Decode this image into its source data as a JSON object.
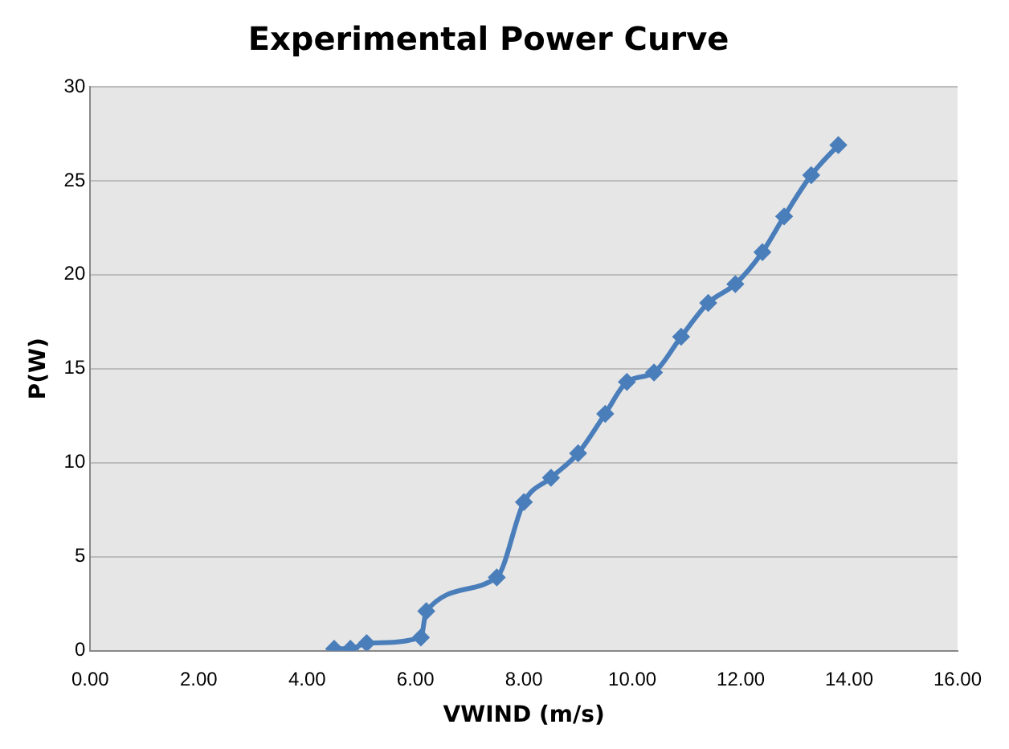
{
  "chart_data": {
    "type": "line",
    "title": "Experimental Power Curve",
    "xlabel": "VWIND (m/s)",
    "ylabel": "P(W)",
    "x": [
      4.5,
      4.8,
      5.1,
      6.1,
      6.2,
      7.5,
      8.0,
      8.5,
      9.0,
      9.5,
      9.9,
      10.4,
      10.9,
      11.4,
      11.9,
      12.4,
      12.8,
      13.3,
      13.8
    ],
    "series": [
      {
        "color": "#4a7ebb",
        "values": [
          0.1,
          0.1,
          0.4,
          0.7,
          2.1,
          3.9,
          7.9,
          9.2,
          10.5,
          12.6,
          14.3,
          14.8,
          16.7,
          18.5,
          19.5,
          21.2,
          23.1,
          25.3,
          26.9
        ]
      }
    ],
    "xlim": [
      0,
      16
    ],
    "xticks": [
      {
        "value": 0,
        "label": "0.00"
      },
      {
        "value": 2,
        "label": "2.00"
      },
      {
        "value": 4,
        "label": "4.00"
      },
      {
        "value": 6,
        "label": "6.00"
      },
      {
        "value": 8,
        "label": "8.00"
      },
      {
        "value": 10,
        "label": "10.00"
      },
      {
        "value": 12,
        "label": "12.00"
      },
      {
        "value": 14,
        "label": "14.00"
      },
      {
        "value": 16,
        "label": "16.00"
      }
    ],
    "ylim": [
      0,
      30
    ],
    "yticks": [
      0,
      5,
      10,
      15,
      20,
      25,
      30
    ],
    "grid": "y",
    "legend": false,
    "marker": "diamond",
    "line_style": "solid"
  }
}
